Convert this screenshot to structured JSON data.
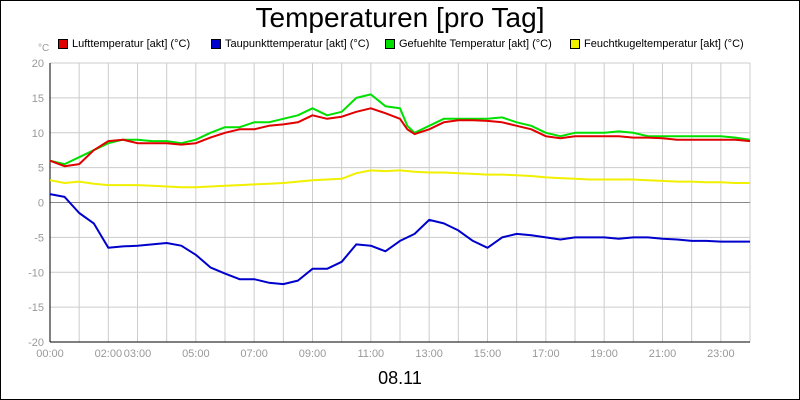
{
  "chart_data": {
    "type": "line",
    "title": "Temperaturen [pro Tag]",
    "xlabel": "08.11",
    "ylabel": "°C",
    "xlim": [
      0,
      24
    ],
    "ylim": [
      -20,
      20
    ],
    "y_ticks": [
      "20",
      "15",
      "10",
      "5",
      "0",
      "-5",
      "-10",
      "-15",
      "-20"
    ],
    "x_ticks": [
      "00:00",
      "02:00",
      "03:00",
      "05:00",
      "07:00",
      "09:00",
      "11:00",
      "13:00",
      "15:00",
      "17:00",
      "19:00",
      "21:00",
      "23:00"
    ],
    "grid": true,
    "legend_position": "top",
    "series": [
      {
        "name": "Lufttemperatur [akt] (°C)",
        "color": "#e00000",
        "x": [
          0,
          0.5,
          1,
          1.5,
          2,
          2.5,
          3,
          3.5,
          4,
          4.5,
          5,
          5.5,
          6,
          6.5,
          7,
          7.5,
          8,
          8.5,
          9,
          9.5,
          10,
          10.5,
          11,
          11.5,
          12,
          12.25,
          12.5,
          13,
          13.5,
          14,
          14.5,
          15,
          15.5,
          16,
          16.5,
          17,
          17.5,
          18,
          18.5,
          19,
          19.5,
          20,
          20.5,
          21,
          21.5,
          22,
          22.5,
          23,
          23.5,
          24
        ],
        "values": [
          6,
          5.2,
          5.5,
          7.5,
          8.8,
          9,
          8.5,
          8.5,
          8.5,
          8.3,
          8.5,
          9.3,
          10,
          10.5,
          10.5,
          11,
          11.2,
          11.5,
          12.5,
          12,
          12.3,
          13,
          13.5,
          12.8,
          12,
          10.5,
          9.8,
          10.5,
          11.5,
          11.8,
          11.8,
          11.7,
          11.5,
          11,
          10.5,
          9.5,
          9.2,
          9.5,
          9.5,
          9.5,
          9.5,
          9.3,
          9.3,
          9.2,
          9,
          9,
          9,
          9,
          9,
          8.8
        ]
      },
      {
        "name": "Taupunkttemperatur [akt] (°C)",
        "color": "#0000cc",
        "x": [
          0,
          0.5,
          1,
          1.5,
          2,
          2.5,
          3,
          3.5,
          4,
          4.5,
          5,
          5.5,
          6,
          6.5,
          7,
          7.5,
          8,
          8.5,
          9,
          9.5,
          10,
          10.5,
          11,
          11.5,
          12,
          12.5,
          13,
          13.5,
          14,
          14.5,
          15,
          15.5,
          16,
          16.5,
          17,
          17.5,
          18,
          18.5,
          19,
          19.5,
          20,
          20.5,
          21,
          21.5,
          22,
          22.5,
          23,
          23.5,
          24
        ],
        "values": [
          1.2,
          0.8,
          -1.5,
          -3,
          -6.5,
          -6.3,
          -6.2,
          -6,
          -5.8,
          -6.2,
          -7.5,
          -9.3,
          -10.2,
          -11,
          -11,
          -11.5,
          -11.7,
          -11.2,
          -9.5,
          -9.5,
          -8.5,
          -6,
          -6.2,
          -7,
          -5.5,
          -4.5,
          -2.5,
          -3,
          -4,
          -5.5,
          -6.5,
          -5,
          -4.5,
          -4.7,
          -5,
          -5.3,
          -5,
          -5,
          -5,
          -5.2,
          -5,
          -5,
          -5.2,
          -5.3,
          -5.5,
          -5.5,
          -5.6,
          -5.6,
          -5.6
        ]
      },
      {
        "name": "Gefuehlte Temperatur [akt] (°C)",
        "color": "#00e000",
        "x": [
          0,
          0.5,
          1,
          1.5,
          2,
          2.5,
          3,
          3.5,
          4,
          4.5,
          5,
          5.5,
          6,
          6.5,
          7,
          7.5,
          8,
          8.5,
          9,
          9.5,
          10,
          10.5,
          11,
          11.5,
          12,
          12.25,
          12.5,
          13,
          13.5,
          14,
          14.5,
          15,
          15.5,
          16,
          16.5,
          17,
          17.5,
          18,
          18.5,
          19,
          19.5,
          20,
          20.5,
          21,
          21.5,
          22,
          22.5,
          23,
          23.5,
          24
        ],
        "values": [
          6,
          5.5,
          6.5,
          7.5,
          8.5,
          9,
          9,
          8.8,
          8.8,
          8.5,
          9,
          10,
          10.8,
          10.8,
          11.5,
          11.5,
          12,
          12.5,
          13.5,
          12.5,
          13,
          15,
          15.5,
          13.8,
          13.5,
          11,
          10,
          11,
          12,
          12,
          12,
          12,
          12.2,
          11.5,
          11,
          10,
          9.5,
          10,
          10,
          10,
          10.2,
          10,
          9.5,
          9.5,
          9.5,
          9.5,
          9.5,
          9.5,
          9.3,
          9
        ]
      },
      {
        "name": "Feuchtkugeltemperatur [akt] (°C)",
        "color": "#f0f000",
        "x": [
          0,
          0.5,
          1,
          1.5,
          2,
          2.5,
          3,
          3.5,
          4,
          4.5,
          5,
          5.5,
          6,
          6.5,
          7,
          7.5,
          8,
          8.5,
          9,
          9.5,
          10,
          10.5,
          11,
          11.5,
          12,
          12.5,
          13,
          13.5,
          14,
          14.5,
          15,
          15.5,
          16,
          16.5,
          17,
          17.5,
          18,
          18.5,
          19,
          19.5,
          20,
          20.5,
          21,
          21.5,
          22,
          22.5,
          23,
          23.5,
          24
        ],
        "values": [
          3.2,
          2.8,
          3,
          2.7,
          2.5,
          2.5,
          2.5,
          2.4,
          2.3,
          2.2,
          2.2,
          2.3,
          2.4,
          2.5,
          2.6,
          2.7,
          2.8,
          3,
          3.2,
          3.3,
          3.4,
          4.2,
          4.6,
          4.5,
          4.6,
          4.4,
          4.3,
          4.3,
          4.2,
          4.1,
          4,
          4,
          3.9,
          3.8,
          3.6,
          3.5,
          3.4,
          3.3,
          3.3,
          3.3,
          3.3,
          3.2,
          3.1,
          3,
          3,
          2.9,
          2.9,
          2.8,
          2.8
        ]
      }
    ]
  }
}
